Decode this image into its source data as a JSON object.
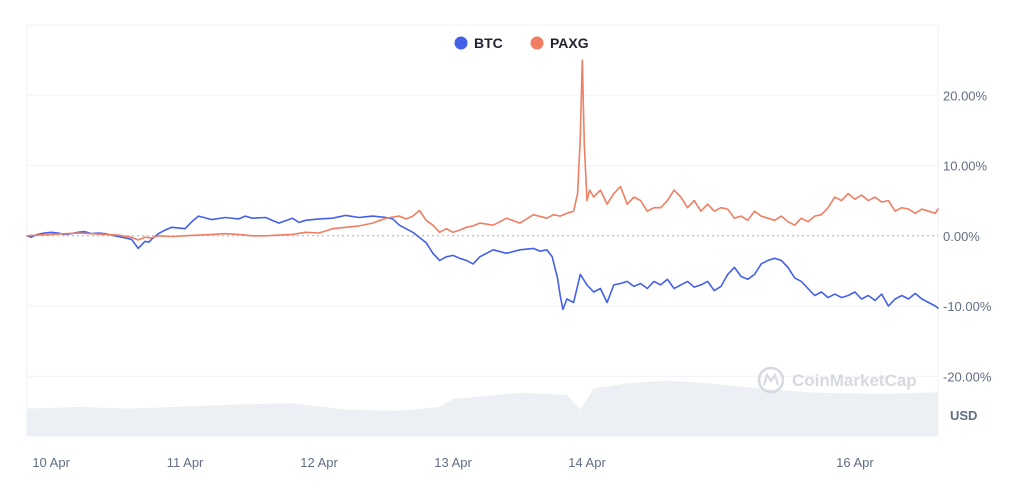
{
  "chart_data": {
    "type": "line",
    "legend_position": "top-center",
    "grid": true,
    "x_unit": "day",
    "x_range": [
      9.82,
      16.62
    ],
    "x_ticks": [
      {
        "label": "10 Apr",
        "value": 10
      },
      {
        "label": "11 Apr",
        "value": 11
      },
      {
        "label": "12 Apr",
        "value": 12
      },
      {
        "label": "13 Apr",
        "value": 13
      },
      {
        "label": "14 Apr",
        "value": 14
      },
      {
        "label": "16 Apr",
        "value": 16
      }
    ],
    "y_ticks": [
      {
        "label": "20.00%",
        "value": 20
      },
      {
        "label": "10.00%",
        "value": 10
      },
      {
        "label": "0.00%",
        "value": 0
      },
      {
        "label": "-10.00%",
        "value": -10
      },
      {
        "label": "-20.00%",
        "value": -20
      }
    ],
    "ylim": [
      -28.5,
      30
    ],
    "volume_label": "USD",
    "watermark": "CoinMarketCap",
    "series": [
      {
        "name": "BTC",
        "color": "#4361e8",
        "x": [
          9.82,
          9.85,
          9.9,
          9.95,
          10.0,
          10.05,
          10.1,
          10.15,
          10.2,
          10.25,
          10.3,
          10.35,
          10.4,
          10.5,
          10.6,
          10.65,
          10.7,
          10.73,
          10.75,
          10.8,
          10.85,
          10.9,
          11.0,
          11.05,
          11.1,
          11.2,
          11.3,
          11.4,
          11.45,
          11.5,
          11.6,
          11.7,
          11.8,
          11.85,
          11.9,
          12.0,
          12.1,
          12.2,
          12.3,
          12.4,
          12.5,
          12.55,
          12.6,
          12.7,
          12.8,
          12.85,
          12.9,
          12.95,
          13.0,
          13.05,
          13.1,
          13.15,
          13.2,
          13.3,
          13.4,
          13.5,
          13.6,
          13.65,
          13.7,
          13.74,
          13.76,
          13.78,
          13.8,
          13.82,
          13.85,
          13.9,
          13.95,
          14.0,
          14.05,
          14.1,
          14.15,
          14.2,
          14.25,
          14.3,
          14.35,
          14.4,
          14.45,
          14.5,
          14.55,
          14.6,
          14.65,
          14.7,
          14.75,
          14.8,
          14.85,
          14.9,
          14.95,
          15.0,
          15.05,
          15.1,
          15.15,
          15.2,
          15.25,
          15.3,
          15.35,
          15.4,
          15.45,
          15.5,
          15.55,
          15.6,
          15.65,
          15.7,
          15.75,
          15.8,
          15.85,
          15.9,
          15.95,
          16.0,
          16.05,
          16.1,
          16.15,
          16.2,
          16.25,
          16.3,
          16.35,
          16.4,
          16.45,
          16.5,
          16.55,
          16.6,
          16.62
        ],
        "values": [
          0.0,
          -0.2,
          0.2,
          0.4,
          0.5,
          0.4,
          0.2,
          0.3,
          0.5,
          0.6,
          0.3,
          0.4,
          0.3,
          -0.1,
          -0.5,
          -1.8,
          -0.8,
          -0.9,
          -0.5,
          0.3,
          0.8,
          1.2,
          1.0,
          2.0,
          2.8,
          2.3,
          2.6,
          2.4,
          2.8,
          2.5,
          2.6,
          1.8,
          2.5,
          1.9,
          2.2,
          2.4,
          2.5,
          2.9,
          2.6,
          2.8,
          2.6,
          2.4,
          1.5,
          0.5,
          -1.0,
          -2.5,
          -3.5,
          -3.0,
          -2.8,
          -3.2,
          -3.5,
          -4.0,
          -3.0,
          -2.0,
          -2.5,
          -2.0,
          -1.8,
          -2.2,
          -2.0,
          -3.0,
          -4.5,
          -6.0,
          -8.5,
          -10.5,
          -9.0,
          -9.5,
          -5.5,
          -7.0,
          -8.0,
          -7.5,
          -9.5,
          -7.0,
          -6.8,
          -6.5,
          -7.2,
          -6.8,
          -7.5,
          -6.5,
          -7.0,
          -6.2,
          -7.5,
          -7.0,
          -6.5,
          -7.3,
          -7.0,
          -6.5,
          -7.8,
          -7.2,
          -5.5,
          -4.5,
          -5.8,
          -6.2,
          -5.5,
          -4.0,
          -3.5,
          -3.2,
          -3.5,
          -4.5,
          -6.0,
          -6.5,
          -7.5,
          -8.5,
          -8.0,
          -8.8,
          -8.3,
          -8.8,
          -8.5,
          -8.0,
          -9.0,
          -8.5,
          -9.2,
          -8.3,
          -10.0,
          -9.0,
          -8.5,
          -9.0,
          -8.2,
          -9.0,
          -9.5,
          -10.0,
          -10.3
        ]
      },
      {
        "name": "PAXG",
        "color": "#ef7e62",
        "x": [
          9.82,
          9.9,
          10.0,
          10.1,
          10.2,
          10.3,
          10.4,
          10.5,
          10.6,
          10.65,
          10.7,
          10.75,
          10.8,
          10.9,
          11.0,
          11.1,
          11.2,
          11.3,
          11.4,
          11.5,
          11.6,
          11.7,
          11.8,
          11.9,
          12.0,
          12.1,
          12.2,
          12.3,
          12.4,
          12.5,
          12.6,
          12.65,
          12.7,
          12.75,
          12.8,
          12.85,
          12.9,
          12.95,
          13.0,
          13.05,
          13.1,
          13.15,
          13.2,
          13.3,
          13.4,
          13.5,
          13.6,
          13.7,
          13.75,
          13.8,
          13.85,
          13.9,
          13.93,
          13.95,
          13.965,
          13.98,
          14.0,
          14.02,
          14.05,
          14.1,
          14.15,
          14.2,
          14.25,
          14.3,
          14.35,
          14.4,
          14.45,
          14.5,
          14.55,
          14.6,
          14.65,
          14.7,
          14.75,
          14.8,
          14.85,
          14.9,
          14.95,
          15.0,
          15.05,
          15.1,
          15.15,
          15.2,
          15.25,
          15.3,
          15.35,
          15.4,
          15.45,
          15.5,
          15.55,
          15.6,
          15.65,
          15.7,
          15.75,
          15.8,
          15.85,
          15.9,
          15.95,
          16.0,
          16.05,
          16.1,
          16.15,
          16.2,
          16.25,
          16.3,
          16.35,
          16.4,
          16.45,
          16.5,
          16.55,
          16.6,
          16.62
        ],
        "values": [
          0.0,
          0.1,
          0.2,
          0.3,
          0.4,
          0.3,
          0.2,
          0.1,
          -0.2,
          -0.6,
          -0.2,
          -0.3,
          0.0,
          -0.1,
          0.0,
          0.1,
          0.2,
          0.3,
          0.2,
          0.0,
          0.0,
          0.1,
          0.2,
          0.5,
          0.4,
          1.0,
          1.2,
          1.4,
          1.8,
          2.5,
          2.8,
          2.4,
          2.8,
          3.6,
          2.2,
          1.5,
          0.5,
          1.0,
          0.5,
          0.8,
          1.2,
          1.4,
          1.8,
          1.5,
          2.5,
          1.8,
          3.0,
          2.5,
          3.0,
          2.8,
          3.2,
          3.5,
          6.0,
          14.0,
          25.0,
          13.0,
          5.0,
          6.5,
          5.5,
          6.5,
          4.5,
          6.0,
          7.0,
          4.5,
          5.5,
          5.0,
          3.5,
          4.0,
          4.0,
          5.0,
          6.5,
          5.5,
          4.0,
          5.0,
          3.5,
          4.5,
          3.5,
          4.0,
          3.8,
          2.5,
          2.8,
          2.2,
          3.5,
          2.8,
          2.5,
          2.2,
          2.8,
          2.0,
          1.5,
          2.5,
          2.0,
          2.8,
          3.0,
          4.0,
          5.5,
          5.0,
          6.0,
          5.2,
          5.8,
          5.0,
          5.5,
          4.8,
          5.0,
          3.5,
          4.0,
          3.8,
          3.2,
          3.8,
          3.5,
          3.2,
          3.8
        ]
      }
    ],
    "volume": {
      "x": [
        9.82,
        10.2,
        10.6,
        11.0,
        11.4,
        11.8,
        12.2,
        12.6,
        12.9,
        13.0,
        13.5,
        13.85,
        13.95,
        14.05,
        14.3,
        14.6,
        14.9,
        15.3,
        15.7,
        16.2,
        16.62
      ],
      "values": [
        0.52,
        0.55,
        0.52,
        0.56,
        0.6,
        0.62,
        0.5,
        0.48,
        0.55,
        0.7,
        0.82,
        0.78,
        0.5,
        0.9,
        1.0,
        1.05,
        1.0,
        0.9,
        0.82,
        0.8,
        0.83
      ]
    }
  }
}
